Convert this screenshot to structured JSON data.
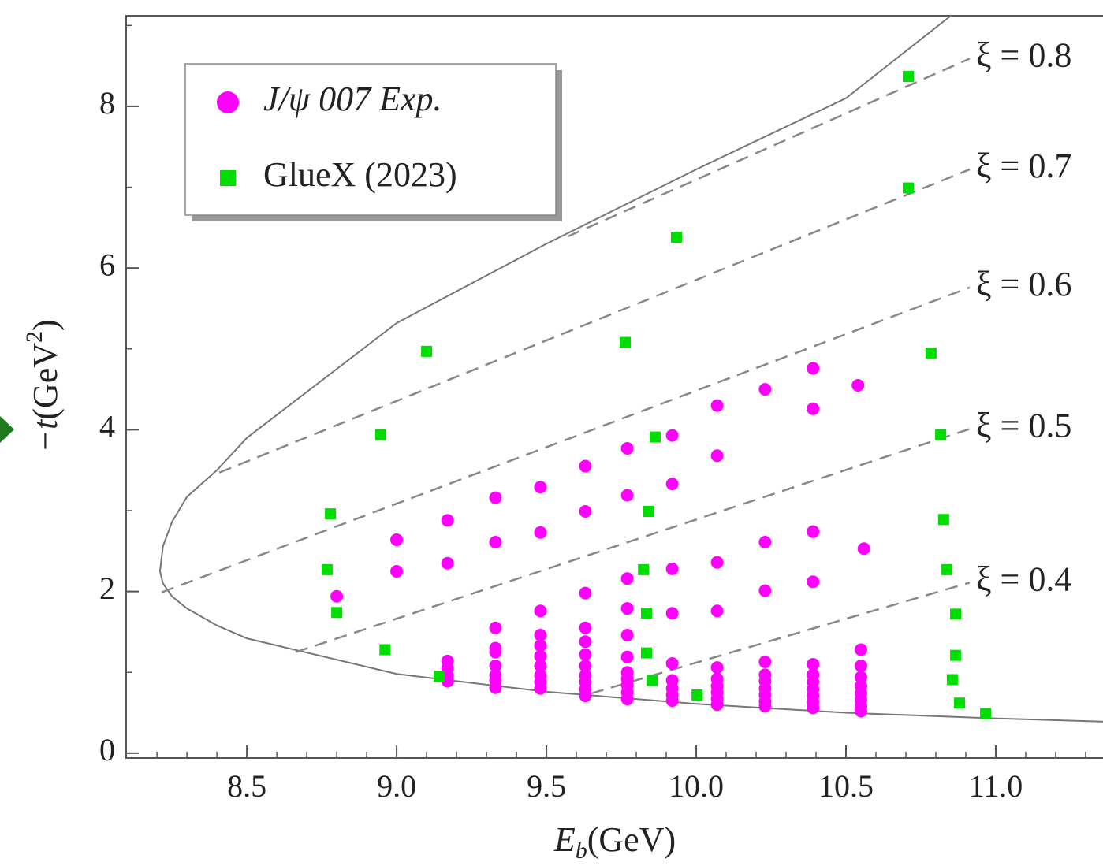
{
  "chart_data": {
    "type": "scatter",
    "x_label": [
      "E",
      "b",
      "(GeV)"
    ],
    "y_label": [
      "−t",
      "(GeV",
      "2",
      ")"
    ],
    "xlim": [
      8.097,
      11.358
    ],
    "ylim": [
      -0.06,
      9.12
    ],
    "xticks": [
      8.5,
      {
        "value": 9,
        "label": "9.0"
      },
      9.5,
      {
        "value": 10,
        "label": "10.0"
      },
      10.5,
      {
        "value": 11,
        "label": "11.0"
      }
    ],
    "xticks_minor": [
      8.2,
      8.3,
      8.4,
      8.6,
      8.7,
      8.8,
      8.9,
      9.1,
      9.2,
      9.3,
      9.4,
      9.6,
      9.7,
      9.8,
      9.9,
      10.1,
      10.2,
      10.3,
      10.4,
      10.6,
      10.7,
      10.8,
      10.9,
      11.1,
      11.2,
      11.3
    ],
    "yticks": [
      0,
      2,
      4,
      6,
      8
    ],
    "yticks_minor": [
      1,
      3,
      5,
      7,
      9
    ],
    "legend": "top-left",
    "series": [
      {
        "name": "J/ψ 007 Exp.",
        "marker": "circle",
        "color": "#ff00ff",
        "x": [
          8.8,
          9.0,
          9.0,
          9.17,
          9.17,
          9.17,
          9.17,
          9.17,
          9.17,
          9.33,
          9.33,
          9.33,
          9.33,
          9.33,
          9.33,
          9.33,
          9.33,
          9.33,
          9.48,
          9.48,
          9.48,
          9.48,
          9.48,
          9.48,
          9.48,
          9.48,
          9.48,
          9.48,
          9.63,
          9.63,
          9.63,
          9.63,
          9.63,
          9.63,
          9.63,
          9.63,
          9.63,
          9.63,
          9.63,
          9.77,
          9.77,
          9.77,
          9.77,
          9.77,
          9.77,
          9.77,
          9.77,
          9.77,
          9.77,
          9.77,
          9.92,
          9.92,
          9.92,
          9.92,
          9.92,
          9.92,
          9.92,
          9.92,
          9.92,
          10.07,
          10.07,
          10.07,
          10.07,
          10.07,
          10.07,
          10.07,
          10.07,
          10.07,
          10.07,
          10.23,
          10.23,
          10.23,
          10.23,
          10.23,
          10.23,
          10.23,
          10.23,
          10.23,
          10.23,
          10.39,
          10.39,
          10.39,
          10.39,
          10.39,
          10.39,
          10.39,
          10.39,
          10.39,
          10.39,
          10.39,
          10.54,
          10.56,
          10.55,
          10.55,
          10.55,
          10.55,
          10.55,
          10.55,
          10.55,
          10.55
        ],
        "values": [
          1.94,
          2.64,
          2.25,
          2.88,
          2.35,
          1.14,
          1.05,
          0.96,
          0.89,
          3.16,
          2.61,
          1.55,
          1.3,
          1.25,
          1.08,
          0.96,
          0.9,
          0.81,
          3.29,
          2.73,
          1.76,
          1.46,
          1.33,
          1.2,
          1.08,
          0.96,
          0.88,
          0.8,
          3.55,
          2.99,
          1.98,
          1.55,
          1.38,
          1.22,
          1.08,
          0.96,
          0.88,
          0.79,
          0.71,
          3.77,
          3.19,
          2.16,
          1.79,
          1.46,
          1.19,
          1.0,
          0.92,
          0.84,
          0.75,
          0.67,
          3.93,
          3.33,
          2.28,
          1.73,
          1.11,
          0.9,
          0.8,
          0.72,
          0.65,
          4.3,
          3.68,
          2.36,
          1.76,
          1.06,
          0.92,
          0.83,
          0.75,
          0.67,
          0.6,
          4.5,
          2.61,
          2.01,
          1.13,
          0.97,
          0.89,
          0.8,
          0.72,
          0.64,
          0.58,
          4.76,
          4.26,
          2.74,
          2.12,
          1.1,
          0.97,
          0.88,
          0.79,
          0.71,
          0.63,
          0.56,
          4.55,
          2.53,
          1.28,
          1.08,
          0.94,
          0.83,
          0.74,
          0.66,
          0.58,
          0.52
        ]
      },
      {
        "name": "GlueX (2023)",
        "marker": "square",
        "color": "#00dd00",
        "x": [
          10.708,
          10.708,
          9.934,
          9.1,
          9.763,
          10.784,
          8.947,
          9.863,
          10.816,
          8.779,
          9.842,
          10.826,
          8.768,
          9.824,
          10.837,
          8.8,
          9.834,
          10.866,
          8.961,
          9.834,
          10.866,
          9.142,
          9.853,
          10.855,
          10.003,
          10.879,
          10.966
        ],
        "values": [
          8.37,
          6.99,
          6.38,
          4.97,
          5.08,
          4.95,
          3.94,
          3.91,
          3.94,
          2.96,
          2.99,
          2.89,
          2.27,
          2.27,
          2.27,
          1.74,
          1.73,
          1.72,
          1.28,
          1.24,
          1.21,
          0.95,
          0.9,
          0.91,
          0.72,
          0.62,
          0.49
        ]
      }
    ],
    "boundary": {
      "color": "#777777",
      "x": [
        10.85,
        10.5,
        10.0,
        9.5,
        9.0,
        8.5,
        8.4,
        8.3,
        8.25,
        8.22,
        8.21,
        8.22,
        8.25,
        8.3,
        8.4,
        8.5,
        9.0,
        9.5,
        10.0,
        10.5,
        11.0,
        11.358
      ],
      "values": [
        9.12,
        8.1,
        7.22,
        6.3,
        5.32,
        3.9,
        3.5,
        3.17,
        2.86,
        2.56,
        2.25,
        2.1,
        1.94,
        1.79,
        1.58,
        1.42,
        0.98,
        0.76,
        0.61,
        0.5,
        0.43,
        0.39
      ]
    },
    "xi_lines": [
      {
        "label": "ξ = 0.8",
        "x": [
          9.571,
          10.913
        ],
        "values": [
          6.39,
          8.59
        ]
      },
      {
        "label": "ξ = 0.7",
        "x": [
          8.408,
          10.913
        ],
        "values": [
          3.47,
          7.22
        ]
      },
      {
        "label": "ξ = 0.6",
        "x": [
          8.216,
          10.913
        ],
        "values": [
          1.99,
          5.76
        ]
      },
      {
        "label": "ξ = 0.5",
        "x": [
          8.663,
          10.913
        ],
        "values": [
          1.25,
          4.01
        ]
      },
      {
        "label": "ξ = 0.4",
        "x": [
          9.65,
          10.913
        ],
        "values": [
          0.74,
          2.11
        ]
      }
    ]
  }
}
